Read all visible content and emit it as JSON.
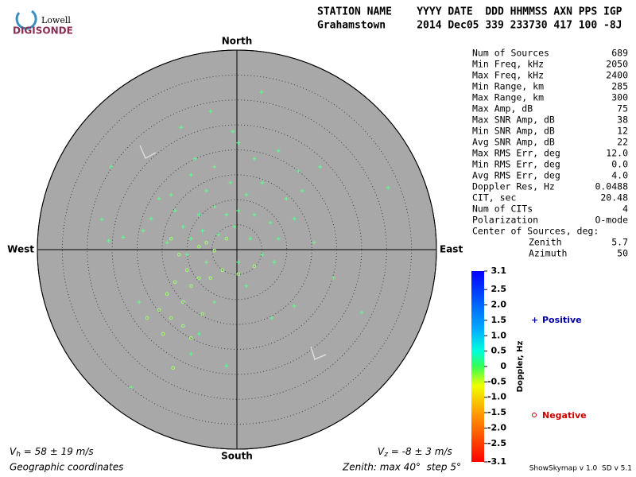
{
  "logo": {
    "top": "Lowell",
    "bottom": "DIGISONDE"
  },
  "header": {
    "labels": "STATION NAME    YYYY DATE  DDD HHMMSS AXN PPS IGP",
    "values": "Grahamstown     2014 Dec05 339 233730 417 100 -8J"
  },
  "stats": {
    "rows": [
      [
        "Num of Sources",
        "689"
      ],
      [
        "Min Freq, kHz",
        "2050"
      ],
      [
        "Max Freq, kHz",
        "2400"
      ],
      [
        "Min Range, km",
        "285"
      ],
      [
        "Max Range, km",
        "300"
      ],
      [
        "Max Amp, dB",
        "75"
      ],
      [
        "Max SNR Amp, dB",
        "38"
      ],
      [
        "Min SNR Amp, dB",
        "12"
      ],
      [
        "Avg SNR Amp, dB",
        "22"
      ],
      [
        "Max RMS Err, deg",
        "12.0"
      ],
      [
        "Min RMS Err, deg",
        "0.0"
      ],
      [
        "Avg RMS Err, deg",
        "4.0"
      ],
      [
        "Doppler Res, Hz",
        "0.0488"
      ],
      [
        "CIT, sec",
        "20.48"
      ],
      [
        "Num of CITs",
        "4"
      ],
      [
        "Polarization",
        "O-mode"
      ]
    ],
    "center_title": "Center of Sources, deg:",
    "center_rows": [
      [
        "Zenith",
        "5.7"
      ],
      [
        "Azimuth",
        "50"
      ]
    ]
  },
  "colorbar": {
    "title": "Doppler, Hz",
    "lim": [
      -3.1,
      3.1
    ],
    "ticks": [
      3.1,
      2.5,
      {
        "value": 2,
        "label": "2.0"
      },
      1.5,
      {
        "value": 1,
        "label": "1.0"
      },
      0.5,
      0,
      -0.5,
      {
        "value": -1,
        "label": "-1.0"
      },
      -1.5,
      {
        "value": -2,
        "label": "-2.0"
      },
      -2.5,
      -3.1
    ]
  },
  "footer": {
    "vh": {
      "symbol": "V",
      "sub": "h",
      "text": " = 58 ± 19 m/s"
    },
    "vz": {
      "symbol": "V",
      "sub": "z",
      "text": " = -8 ± 3 m/s"
    },
    "coords": "Geographic coordinates",
    "zenith": "Zenith: max 40°  step 5°",
    "version": "ShowSkymap v 1.0  SD v 5.1"
  },
  "chart_data": {
    "type": "polar-scatter",
    "directions": {
      "north": "North",
      "south": "South",
      "west": "West",
      "east": "East"
    },
    "rlim": [
      0,
      40
    ],
    "rticks": [
      5,
      10,
      15,
      20,
      25,
      30,
      35,
      40
    ],
    "grid": true,
    "series": [
      {
        "name": "Positive",
        "color": "#5cff8c",
        "marker": "plus",
        "x": [
          4.9,
          -5.3,
          -11.2,
          -0.8,
          -25.2,
          30.3,
          16.7,
          8.3,
          0.3,
          3.5,
          -9.2,
          -4.5,
          -6.1,
          -1.3,
          1.9,
          5.1,
          9.9,
          13.1,
          -15.6,
          -12.4,
          -7.6,
          -4.5,
          -2.1,
          0.3,
          3.5,
          6.7,
          -17.2,
          -18.8,
          -10.8,
          -6.9,
          -3.7,
          -0.5,
          2.7,
          8.3,
          11.5,
          -9.2,
          -14.0,
          -22.8,
          -27.1,
          -25.7,
          5.1,
          0.3,
          -6.1,
          -10.0,
          11.5,
          7.0,
          25.0,
          -19.6,
          -7.6,
          -2.1,
          -9.2,
          -21.2,
          -4.5,
          1.9,
          7.5,
          15.5,
          19.4,
          12.3,
          -8.4,
          -13.2
        ],
        "y": [
          31.6,
          27.7,
          24.5,
          23.7,
          16.6,
          12.4,
          16.6,
          19.8,
          21.4,
          18.2,
          15.0,
          16.6,
          11.8,
          13.4,
          11.0,
          13.4,
          10.2,
          11.8,
          10.2,
          7.8,
          7.0,
          8.6,
          7.0,
          7.8,
          7.0,
          5.4,
          6.2,
          3.8,
          4.6,
          3.8,
          3.0,
          4.6,
          2.2,
          2.2,
          6.2,
          2.2,
          1.4,
          2.5,
          6.1,
          1.8,
          -1.0,
          -2.5,
          -2.5,
          -1.0,
          -11.3,
          -13.7,
          -12.6,
          -10.5,
          -16.9,
          -23.3,
          -20.9,
          -27.6,
          -10.5,
          -7.3,
          -2.5,
          1.4,
          -5.7,
          15.8,
          18.2,
          11.0
        ]
      },
      {
        "name": "Negative",
        "color": "#9cff6a",
        "marker": "circle",
        "x": [
          -13.2,
          -11.6,
          -10.0,
          -12.4,
          -9.2,
          -14.0,
          -10.8,
          -7.6,
          -15.6,
          -18.0,
          -13.2,
          -10.8,
          -12.8,
          -9.2,
          -5.3,
          -2.9,
          0.3,
          3.5,
          -4.5,
          -7.6,
          -2.1,
          -6.1,
          -14.8,
          -6.9
        ],
        "y": [
          2.2,
          -1.0,
          -4.1,
          -6.5,
          -7.3,
          -8.9,
          -10.5,
          -5.7,
          -12.1,
          -13.7,
          -13.7,
          -15.3,
          -23.7,
          -17.7,
          -5.7,
          -4.1,
          -4.9,
          -3.3,
          -0.2,
          0.6,
          2.2,
          1.4,
          -16.9,
          -12.9
        ]
      }
    ]
  }
}
